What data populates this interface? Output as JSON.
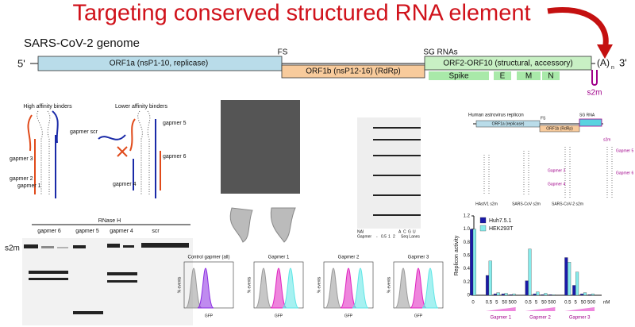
{
  "header": {
    "title": "Targeting conserved structured RNA element"
  },
  "genome": {
    "label": "SARS-CoV-2 genome",
    "five_prime": "5'",
    "three_prime": "3'",
    "polyA": "(A)",
    "polyA_sub": "n",
    "orf1a": "ORF1a (nsP1-10, replicase)",
    "orf1b": "ORF1b (nsP12-16) (RdRp)",
    "orf2_10": "ORF2-ORF10 (structural, accessory)",
    "fs": "FS",
    "sg": "SG RNAs",
    "spike": "Spike",
    "e": "E",
    "m": "M",
    "n": "N",
    "s2m": "s2m"
  },
  "binders": {
    "high": "High affinity binders",
    "low": "Lower affinity binders",
    "labels": [
      "gapmer 3",
      "gapmer 2",
      "gapmer 1",
      "gapmer scr",
      "gapmer 5",
      "gapmer 6",
      "gapmer 4"
    ]
  },
  "gel": {
    "title": "RNase H",
    "lanes": [
      "gapmer 6",
      "gapmer 5",
      "gapmer 4",
      "scr"
    ],
    "band": "s2m"
  },
  "seq_gel": {
    "nai": "NAI",
    "gapmer": "Gapmer",
    "seq": "Seq Lanes",
    "conc": [
      "-",
      "0.5",
      "1",
      "2"
    ],
    "bases": [
      "A",
      "C",
      "G",
      "U"
    ]
  },
  "flow": {
    "panels": [
      "Control gapmer (all)",
      "Gapmer 1",
      "Gapmer 2",
      "Gapmer 3"
    ],
    "ylabel": "% events",
    "xlabel": "GFP"
  },
  "astro": {
    "title": "Human astrovirus replicon",
    "orf1a": "ORF1a (replicase)",
    "orf1b": "ORF1b (RdRp)",
    "fs": "FS",
    "sg": "SG RNA",
    "s2m": "s2m",
    "structures": [
      "HAstV1 s2m",
      "SARS-CoV s2m",
      "SARS-CoV-2 s2m"
    ],
    "gapmers": [
      "Gapmer 3",
      "Gapmer 4",
      "Gapmer 5",
      "Gapmer 6"
    ]
  },
  "chart_data": {
    "type": "bar",
    "ylabel": "Replicon activity",
    "unit": "nM",
    "categories": [
      "0",
      "0.5",
      "5",
      "50",
      "500",
      "0.5",
      "5",
      "50",
      "500",
      "0.5",
      "5",
      "50",
      "500"
    ],
    "groups": [
      "Gapmer 1",
      "Gapmer 2",
      "Gapmer 3"
    ],
    "series": [
      {
        "name": "Huh7.5.1",
        "color": "#1a1aa8",
        "values": [
          1.0,
          0.3,
          0.02,
          0.02,
          0.01,
          0.22,
          0.02,
          0.01,
          0.01,
          0.57,
          0.15,
          0.02,
          0.01
        ]
      },
      {
        "name": "HEK293T",
        "color": "#86ecec",
        "values": [
          1.0,
          0.52,
          0.04,
          0.03,
          0.02,
          0.7,
          0.05,
          0.03,
          0.01,
          0.5,
          0.35,
          0.04,
          0.02
        ]
      }
    ],
    "ylim": [
      0,
      1.2
    ],
    "yticks": [
      0,
      0.2,
      0.4,
      0.6,
      0.8,
      {
        "value": 1,
        "label": "1.0"
      },
      1.2
    ]
  }
}
